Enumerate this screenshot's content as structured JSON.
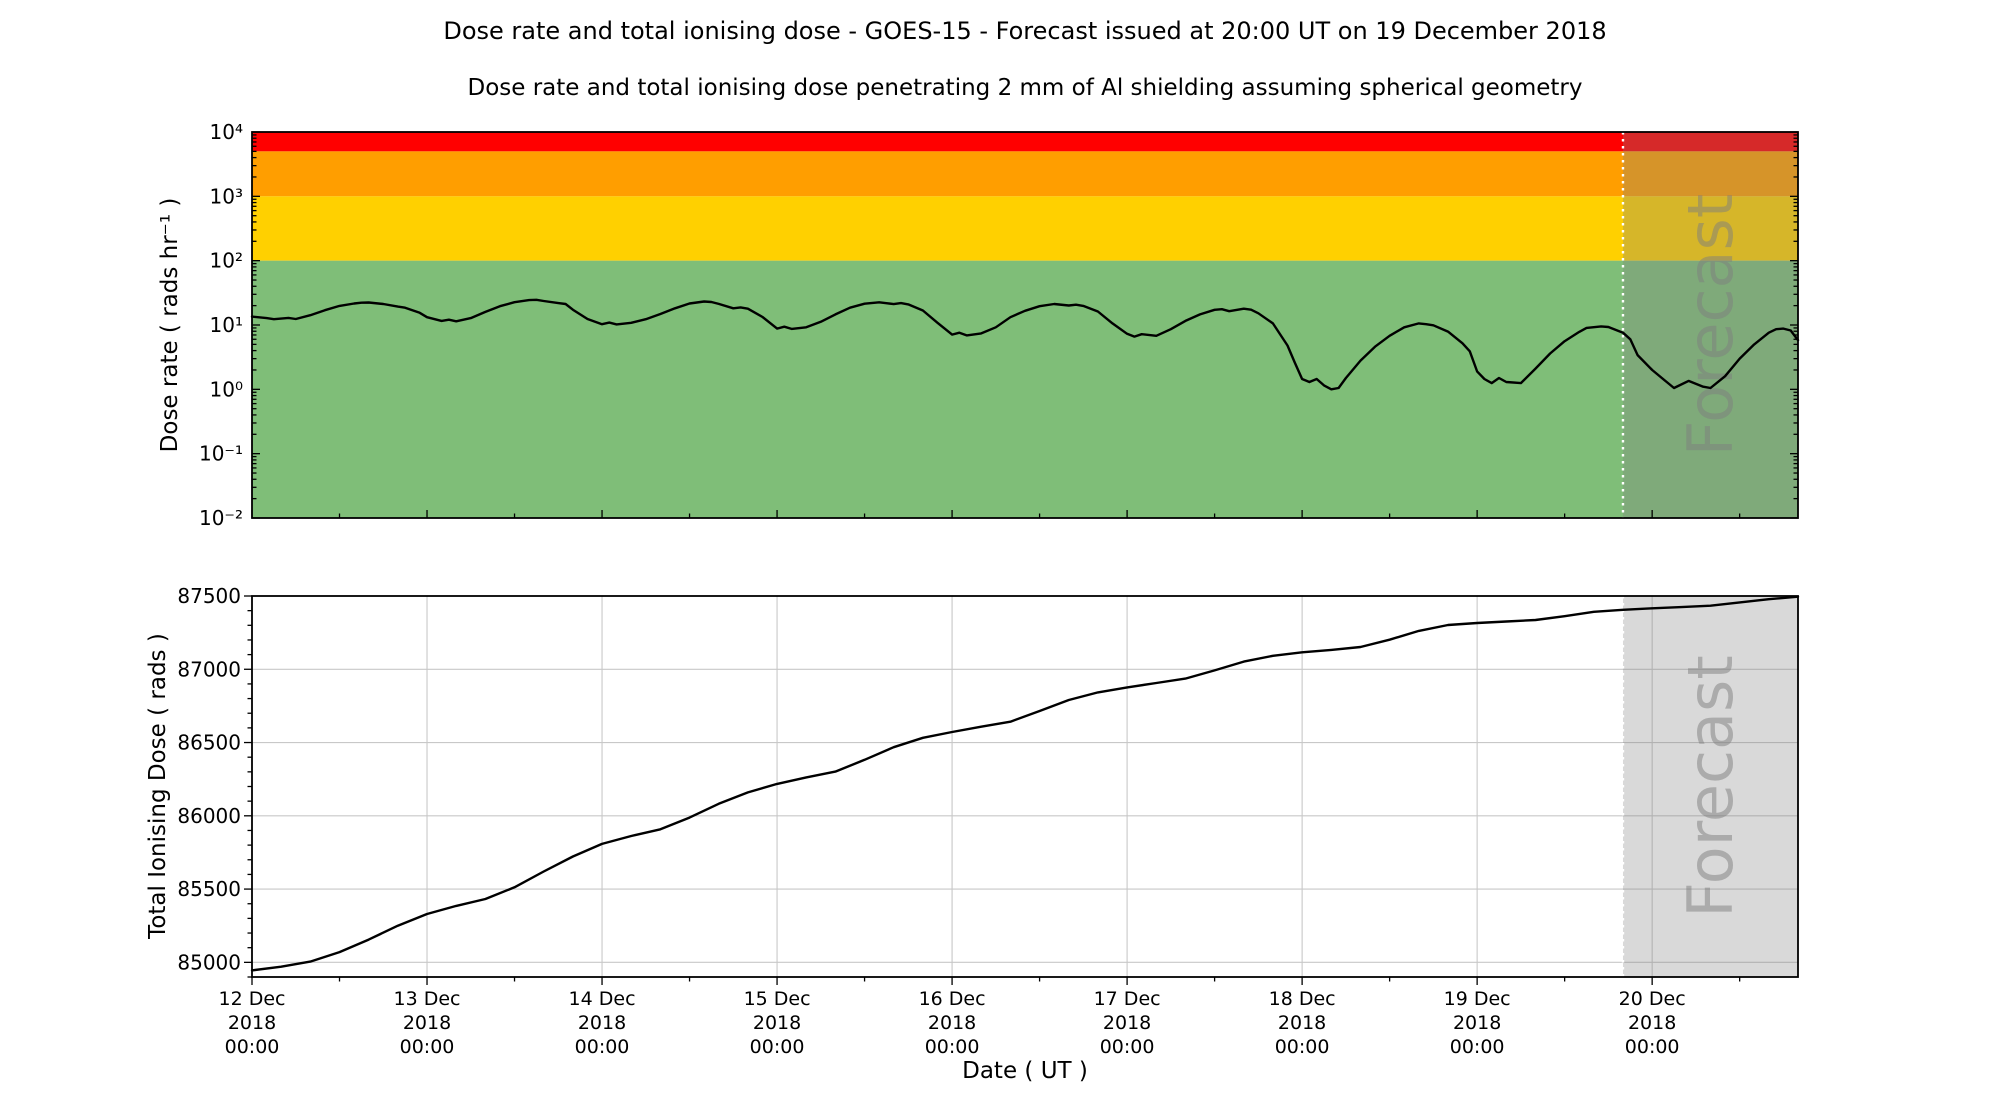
{
  "titles": {
    "main": "Dose rate and total ionising dose - GOES-15 - Forecast issued at 20:00 UT on 19 December 2018",
    "sub": "Dose rate and total ionising dose penetrating 2 mm of Al shielding assuming spherical geometry"
  },
  "chart_data": [
    {
      "id": "dose_rate",
      "type": "line",
      "ylabel": "Dose rate ( rads hr⁻¹ )",
      "yscale": "log",
      "ylim": [
        0.01,
        10000
      ],
      "yticks": [
        {
          "v": 10000,
          "label": "10⁴"
        },
        {
          "v": 1000,
          "label": "10³"
        },
        {
          "v": 100,
          "label": "10²"
        },
        {
          "v": 10,
          "label": "10¹"
        },
        {
          "v": 1,
          "label": "10⁰"
        },
        {
          "v": 0.1,
          "label": "10⁻¹"
        },
        {
          "v": 0.01,
          "label": "10⁻²"
        }
      ],
      "x_hours_range": [
        0,
        212
      ],
      "x_epoch_start_label": "12 Dec 2018 00:00",
      "grid": false,
      "bands": [
        {
          "name": "band-red-severe",
          "from": 5000,
          "to": 10000,
          "color": "#ff0000"
        },
        {
          "name": "band-orange-high",
          "from": 1000,
          "to": 5000,
          "color": "#ff9e00"
        },
        {
          "name": "band-yellow-warning",
          "from": 100,
          "to": 1000,
          "color": "#ffd000"
        },
        {
          "name": "band-green-safe",
          "from": 0.01,
          "to": 100,
          "color": "#7fbe78"
        }
      ],
      "forecast": {
        "start_hour": 188,
        "label": "Forecast",
        "boundary_line_color": "#ffffff",
        "shade_color": "#808080",
        "shade_alpha": 0.32,
        "label_color": "#7d7d7d",
        "label_alpha": 0.5
      },
      "series": [
        {
          "name": "GOES-15 dose rate",
          "color": "#000000",
          "points": [
            [
              0,
              13.5
            ],
            [
              2,
              12.8
            ],
            [
              3,
              12.3
            ],
            [
              5,
              12.9
            ],
            [
              6,
              12.4
            ],
            [
              8,
              14.2
            ],
            [
              10,
              17.0
            ],
            [
              12,
              19.8
            ],
            [
              14,
              21.6
            ],
            [
              15,
              22.2
            ],
            [
              16,
              22.4
            ],
            [
              18,
              21.2
            ],
            [
              20,
              19.3
            ],
            [
              21,
              18.6
            ],
            [
              23,
              15.5
            ],
            [
              24,
              13.2
            ],
            [
              26,
              11.6
            ],
            [
              27,
              12.1
            ],
            [
              28,
              11.4
            ],
            [
              30,
              12.8
            ],
            [
              32,
              16.0
            ],
            [
              34,
              19.6
            ],
            [
              36,
              22.6
            ],
            [
              38,
              24.4
            ],
            [
              39,
              24.6
            ],
            [
              40,
              23.6
            ],
            [
              42,
              21.9
            ],
            [
              43,
              21.2
            ],
            [
              44,
              17.3
            ],
            [
              46,
              12.4
            ],
            [
              48,
              10.3
            ],
            [
              49,
              10.9
            ],
            [
              50,
              10.2
            ],
            [
              52,
              10.8
            ],
            [
              54,
              12.3
            ],
            [
              56,
              14.8
            ],
            [
              58,
              18.2
            ],
            [
              60,
              21.6
            ],
            [
              62,
              23.2
            ],
            [
              63,
              22.8
            ],
            [
              64,
              21.3
            ],
            [
              66,
              18.2
            ],
            [
              67,
              18.8
            ],
            [
              68,
              17.9
            ],
            [
              70,
              13.3
            ],
            [
              72,
              8.8
            ],
            [
              73,
              9.4
            ],
            [
              74,
              8.7
            ],
            [
              76,
              9.2
            ],
            [
              78,
              11.2
            ],
            [
              80,
              14.6
            ],
            [
              82,
              18.6
            ],
            [
              84,
              21.4
            ],
            [
              86,
              22.5
            ],
            [
              87,
              21.8
            ],
            [
              88,
              21.1
            ],
            [
              89,
              21.9
            ],
            [
              90,
              20.9
            ],
            [
              92,
              16.8
            ],
            [
              94,
              10.8
            ],
            [
              96,
              7.1
            ],
            [
              97,
              7.6
            ],
            [
              98,
              6.9
            ],
            [
              100,
              7.4
            ],
            [
              102,
              9.2
            ],
            [
              104,
              13.2
            ],
            [
              106,
              16.6
            ],
            [
              108,
              19.6
            ],
            [
              110,
              21.2
            ],
            [
              112,
              20.1
            ],
            [
              113,
              20.7
            ],
            [
              114,
              19.8
            ],
            [
              116,
              16.2
            ],
            [
              118,
              10.6
            ],
            [
              120,
              7.3
            ],
            [
              121,
              6.6
            ],
            [
              122,
              7.2
            ],
            [
              124,
              6.8
            ],
            [
              126,
              8.6
            ],
            [
              128,
              11.6
            ],
            [
              130,
              14.6
            ],
            [
              132,
              17.2
            ],
            [
              133,
              17.6
            ],
            [
              134,
              16.4
            ],
            [
              136,
              17.9
            ],
            [
              137,
              17.3
            ],
            [
              138,
              15.2
            ],
            [
              140,
              10.6
            ],
            [
              142,
              4.8
            ],
            [
              143,
              2.6
            ],
            [
              144,
              1.45
            ],
            [
              145,
              1.3
            ],
            [
              146,
              1.45
            ],
            [
              147,
              1.15
            ],
            [
              148,
              1.0
            ],
            [
              149,
              1.05
            ],
            [
              150,
              1.5
            ],
            [
              152,
              2.8
            ],
            [
              154,
              4.6
            ],
            [
              156,
              6.8
            ],
            [
              158,
              9.2
            ],
            [
              160,
              10.6
            ],
            [
              161,
              10.3
            ],
            [
              162,
              9.9
            ],
            [
              164,
              7.9
            ],
            [
              166,
              5.2
            ],
            [
              167,
              3.9
            ],
            [
              168,
              1.9
            ],
            [
              169,
              1.45
            ],
            [
              170,
              1.25
            ],
            [
              171,
              1.5
            ],
            [
              172,
              1.3
            ],
            [
              174,
              1.25
            ],
            [
              176,
              2.1
            ],
            [
              178,
              3.6
            ],
            [
              180,
              5.6
            ],
            [
              182,
              7.8
            ],
            [
              183,
              9.0
            ],
            [
              185,
              9.5
            ],
            [
              186,
              9.3
            ],
            [
              188,
              7.6
            ],
            [
              189,
              6.0
            ],
            [
              190,
              3.4
            ],
            [
              192,
              2.0
            ],
            [
              194,
              1.3
            ],
            [
              195,
              1.05
            ],
            [
              197,
              1.35
            ],
            [
              199,
              1.1
            ],
            [
              200,
              1.05
            ],
            [
              202,
              1.6
            ],
            [
              204,
              3.0
            ],
            [
              206,
              5.0
            ],
            [
              208,
              7.6
            ],
            [
              209,
              8.6
            ],
            [
              210,
              8.8
            ],
            [
              211,
              8.2
            ],
            [
              212,
              5.8
            ]
          ]
        }
      ]
    },
    {
      "id": "total_dose",
      "type": "line",
      "ylabel": "Total Ionising Dose ( rads )",
      "xlabel": "Date ( UT )",
      "yscale": "linear",
      "ylim": [
        84900,
        87500
      ],
      "yticks": [
        85000,
        85500,
        86000,
        86500,
        87000,
        87500
      ],
      "y_minor_step": 100,
      "x_hours_range": [
        0,
        212
      ],
      "grid": true,
      "grid_color": "#c8c8c8",
      "xticks": [
        {
          "hour": 0,
          "lines": [
            "12 Dec",
            "2018",
            "00:00"
          ]
        },
        {
          "hour": 24,
          "lines": [
            "13 Dec",
            "2018",
            "00:00"
          ]
        },
        {
          "hour": 48,
          "lines": [
            "14 Dec",
            "2018",
            "00:00"
          ]
        },
        {
          "hour": 72,
          "lines": [
            "15 Dec",
            "2018",
            "00:00"
          ]
        },
        {
          "hour": 96,
          "lines": [
            "16 Dec",
            "2018",
            "00:00"
          ]
        },
        {
          "hour": 120,
          "lines": [
            "17 Dec",
            "2018",
            "00:00"
          ]
        },
        {
          "hour": 144,
          "lines": [
            "18 Dec",
            "2018",
            "00:00"
          ]
        },
        {
          "hour": 168,
          "lines": [
            "19 Dec",
            "2018",
            "00:00"
          ]
        },
        {
          "hour": 192,
          "lines": [
            "20 Dec",
            "2018",
            "00:00"
          ]
        }
      ],
      "forecast": {
        "start_hour": 188,
        "label": "Forecast",
        "boundary_line_color": "#ffffff",
        "shade_color": "#808080",
        "shade_alpha": 0.3,
        "label_color": "#7d7d7d",
        "label_alpha": 0.5
      },
      "series": [
        {
          "name": "GOES-15 total ionising dose",
          "color": "#000000",
          "points": [
            [
              0,
              84945
            ],
            [
              4,
              84970
            ],
            [
              8,
              85005
            ],
            [
              12,
              85070
            ],
            [
              16,
              85155
            ],
            [
              20,
              85250
            ],
            [
              24,
              85330
            ],
            [
              28,
              85385
            ],
            [
              32,
              85432
            ],
            [
              36,
              85512
            ],
            [
              40,
              85620
            ],
            [
              44,
              85722
            ],
            [
              48,
              85808
            ],
            [
              52,
              85862
            ],
            [
              56,
              85908
            ],
            [
              60,
              85988
            ],
            [
              64,
              86082
            ],
            [
              68,
              86160
            ],
            [
              72,
              86218
            ],
            [
              76,
              86262
            ],
            [
              80,
              86302
            ],
            [
              84,
              86382
            ],
            [
              88,
              86468
            ],
            [
              92,
              86532
            ],
            [
              96,
              86572
            ],
            [
              100,
              86608
            ],
            [
              104,
              86642
            ],
            [
              108,
              86715
            ],
            [
              112,
              86790
            ],
            [
              116,
              86842
            ],
            [
              120,
              86876
            ],
            [
              124,
              86906
            ],
            [
              128,
              86936
            ],
            [
              132,
              86992
            ],
            [
              136,
              87052
            ],
            [
              140,
              87092
            ],
            [
              144,
              87116
            ],
            [
              148,
              87132
            ],
            [
              152,
              87152
            ],
            [
              156,
              87202
            ],
            [
              160,
              87262
            ],
            [
              164,
              87302
            ],
            [
              168,
              87316
            ],
            [
              172,
              87326
            ],
            [
              176,
              87336
            ],
            [
              180,
              87362
            ],
            [
              184,
              87392
            ],
            [
              188,
              87406
            ],
            [
              192,
              87416
            ],
            [
              196,
              87424
            ],
            [
              200,
              87434
            ],
            [
              204,
              87456
            ],
            [
              208,
              87478
            ],
            [
              212,
              87495
            ]
          ]
        }
      ]
    }
  ]
}
